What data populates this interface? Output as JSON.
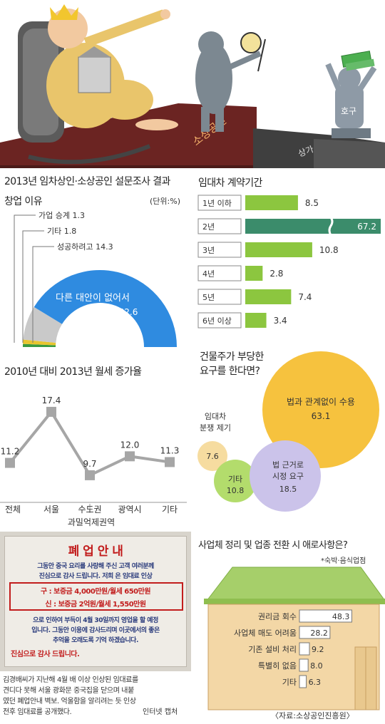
{
  "illustration": {
    "banner_text": "소상공인",
    "platform_text": "상가",
    "figure_badge": "호구"
  },
  "survey_title": "2013년 임차상인·소상공인 설문조사 결과",
  "startup_chart": {
    "title": "창업 이유",
    "unit": "(단위:%)",
    "items": [
      {
        "label": "가업 승계",
        "value": "1.3",
        "color": "#3a9a40"
      },
      {
        "label": "기타",
        "value": "1.8",
        "color": "#e8c52e"
      },
      {
        "label": "성공하려고",
        "value": "14.3",
        "color": "#c9c9c9"
      },
      {
        "label": "다른 대안이 없어서",
        "value": "82.6",
        "color": "#2f8be0"
      }
    ]
  },
  "lease_chart": {
    "title": "임대차 계약기간",
    "categories": [
      "1년 이하",
      "2년",
      "3년",
      "4년",
      "5년",
      "6년 이상"
    ],
    "values": [
      8.5,
      67.2,
      10.8,
      2.8,
      7.4,
      3.4
    ],
    "value_labels": [
      "8.5",
      "67.2",
      "10.8",
      "2.8",
      "7.4",
      "3.4"
    ]
  },
  "rent_chart": {
    "title": "2010년 대비 2013년 월세 증가율",
    "categories": [
      "전체",
      "서울",
      "수도권",
      "광역시",
      "기타"
    ],
    "values": [
      11.2,
      17.4,
      9.7,
      12.0,
      11.3
    ],
    "value_labels": [
      "11.2",
      "17.4",
      "9.7",
      "12.0",
      "11.3"
    ],
    "sub_label": "과밀억제권역"
  },
  "landlord_chart": {
    "title_line1": "건물주가 부당한",
    "title_line2": "요구를 한다면?",
    "bubbles": [
      {
        "label_lines": [
          "법과 관계없이 수용"
        ],
        "value": "63.1",
        "color": "#f6c23e"
      },
      {
        "label_lines": [
          "임대차",
          "분쟁 제기"
        ],
        "value": "7.6",
        "color": "#f6dca0"
      },
      {
        "label_lines": [
          "기타"
        ],
        "value": "10.8",
        "color": "#b3dc6c"
      },
      {
        "label_lines": [
          "법 근거로",
          "시정 요구"
        ],
        "value": "18.5",
        "color": "#cbc3ea"
      }
    ]
  },
  "photo": {
    "notice_title": "폐 업 안 내",
    "notice_lines": [
      "그동안 중국 요리를 사랑해 주신 고객 여러분께",
      "진심으로 감사 드립니다.  저희    은 임대료 인상",
      "구 : 보증금 4,000만원/월세 650만원",
      "신 : 보증금 2억원/월세 1,550만원",
      "으로 인하여 부득이 4월 30일까지 영업을 할 예정",
      "입니다. 그동안 이용에 감사드리며 이곳에서의 좋은",
      "추억을 오래도록 기억 하겠습니다.",
      "진심으로 감사 드립니다."
    ],
    "caption_line1": "김경배씨가 지난해 4월 배 이상 인상된 임대료를",
    "caption_line2": "견디다 못해 서울 광화문 중국집을 닫으며 내붙",
    "caption_line3": "였던 폐업안내 벽보. 억울함을 알리려는 듯 인상",
    "caption_line4": "전후 임대료를 공개했다.",
    "caption_credit": "인터넷 캡처"
  },
  "closure_chart": {
    "title": "사업체 정리 및 업종 전환 시 애로사항은?",
    "note": "*숙박·음식업점",
    "categories": [
      "권리금 회수",
      "사업체 매도 어려움",
      "기존 설비 처리",
      "특별히 없음",
      "기타"
    ],
    "values": [
      48.3,
      28.2,
      9.2,
      8.0,
      6.3
    ],
    "value_labels": [
      "48.3",
      "28.2",
      "9.2",
      "8.0",
      "6.3"
    ]
  },
  "source": "〈자료:소상공인진흥원〉",
  "colors": {
    "lease_bar": "#8cc63f",
    "lease_bar_highlight": "#3b8c6b",
    "line": "#a6a6a6",
    "marker": "#a6a6a6",
    "house_wall": "#f3d7a6",
    "house_roof": "#a6cf6a"
  }
}
